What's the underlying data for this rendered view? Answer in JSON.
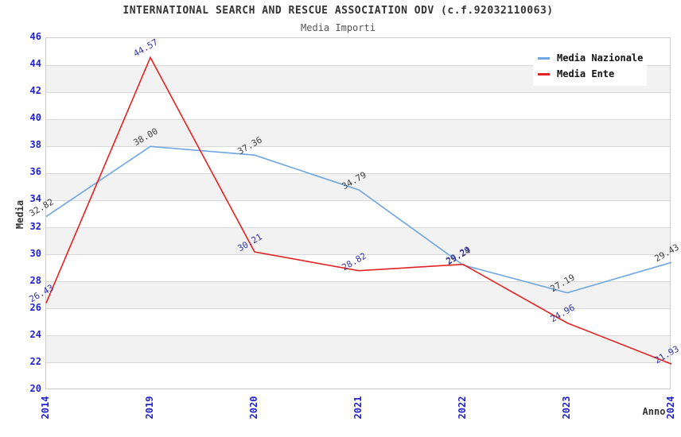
{
  "header": {
    "title": "INTERNATIONAL SEARCH AND RESCUE ASSOCIATION ODV (c.f.92032110063)",
    "subtitle": "Media Importi"
  },
  "chart_data": {
    "type": "line",
    "title": "INTERNATIONAL SEARCH AND RESCUE ASSOCIATION ODV (c.f.92032110063)",
    "subtitle": "Media Importi",
    "xlabel": "Anno",
    "ylabel": "Media",
    "categories": [
      "2014",
      "2019",
      "2020",
      "2021",
      "2022",
      "2023",
      "2024"
    ],
    "series": [
      {
        "name": "Media Nazionale",
        "color": "#6ea6e0",
        "label_color": "#404040",
        "values": [
          32.82,
          38.0,
          37.36,
          34.79,
          29.24,
          27.19,
          29.43
        ]
      },
      {
        "name": "Media Ente",
        "color": "#e32222",
        "label_color": "#3333aa",
        "values": [
          26.43,
          44.57,
          30.21,
          28.82,
          29.29,
          24.96,
          21.93
        ]
      }
    ],
    "ylim": [
      20,
      46
    ],
    "ytick_step": 2,
    "grid": "horizontal-bands",
    "band_color": "#f2f2f2",
    "gridline_color": "#d9d9d9",
    "tick_label_color": "#2222cc",
    "legend_position": "top-right",
    "value_label_decimals": 2
  },
  "legend": {
    "items": [
      {
        "label": "Media Nazionale"
      },
      {
        "label": "Media Ente"
      }
    ]
  }
}
